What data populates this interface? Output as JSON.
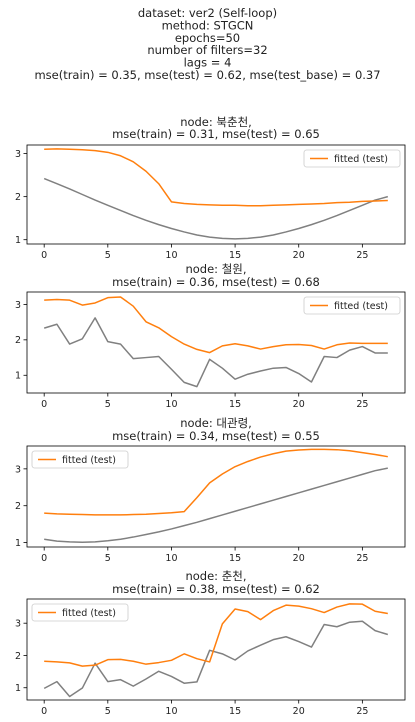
{
  "figure": {
    "suptitle_lines": [
      "dataset: ver2 (Self-loop)",
      "method: STGCN",
      "epochs=50",
      "number of filters=32",
      "lags = 4",
      "mse(train) = 0.35, mse(test) = 0.62, mse(test_base) = 0.37"
    ]
  },
  "chart_data": [
    {
      "type": "line",
      "title_lines": [
        "node: 북춘천,",
        "mse(train) = 0.31, mse(test) = 0.65"
      ],
      "x": [
        0,
        1,
        2,
        3,
        4,
        5,
        6,
        7,
        8,
        9,
        10,
        11,
        12,
        13,
        14,
        15,
        16,
        17,
        18,
        19,
        20,
        21,
        22,
        23,
        24,
        25,
        26,
        27
      ],
      "xticks": [
        0,
        5,
        10,
        15,
        20,
        25
      ],
      "yticks": [
        1,
        2,
        3
      ],
      "xlim": [
        -1.35,
        28.35
      ],
      "ylim": [
        0.9,
        3.2
      ],
      "legend_loc": "upper right",
      "series": [
        {
          "values": [
            2.42,
            2.3,
            2.18,
            2.05,
            1.92,
            1.8,
            1.68,
            1.56,
            1.45,
            1.35,
            1.26,
            1.18,
            1.11,
            1.06,
            1.03,
            1.02,
            1.03,
            1.06,
            1.11,
            1.18,
            1.26,
            1.35,
            1.45,
            1.56,
            1.68,
            1.8,
            1.92,
            2.0
          ],
          "color": "#808080"
        },
        {
          "name": "fitted (test)",
          "values": [
            3.1,
            3.11,
            3.1,
            3.09,
            3.07,
            3.03,
            2.95,
            2.81,
            2.59,
            2.3,
            1.88,
            1.84,
            1.82,
            1.81,
            1.8,
            1.8,
            1.79,
            1.79,
            1.8,
            1.81,
            1.82,
            1.83,
            1.84,
            1.86,
            1.87,
            1.89,
            1.9,
            1.91
          ],
          "color": "#ff7f0e"
        }
      ]
    },
    {
      "type": "line",
      "title_lines": [
        "node: 철원,",
        "mse(train) = 0.36, mse(test) = 0.68"
      ],
      "x": [
        0,
        1,
        2,
        3,
        4,
        5,
        6,
        7,
        8,
        9,
        10,
        11,
        12,
        13,
        14,
        15,
        16,
        17,
        18,
        19,
        20,
        21,
        22,
        23,
        24,
        25,
        26,
        27
      ],
      "xticks": [
        0,
        5,
        10,
        15,
        20,
        25
      ],
      "yticks": [
        1,
        2,
        3
      ],
      "xlim": [
        -1.35,
        28.35
      ],
      "ylim": [
        0.5,
        3.35
      ],
      "legend_loc": "upper right",
      "series": [
        {
          "values": [
            2.33,
            2.44,
            1.88,
            2.03,
            2.62,
            1.95,
            1.88,
            1.47,
            1.5,
            1.53,
            1.17,
            0.8,
            0.68,
            1.45,
            1.2,
            0.89,
            1.03,
            1.12,
            1.2,
            1.22,
            1.05,
            0.81,
            1.53,
            1.5,
            1.71,
            1.81,
            1.63,
            1.63
          ],
          "color": "#808080"
        },
        {
          "name": "fitted (test)",
          "values": [
            3.12,
            3.14,
            3.12,
            2.98,
            3.04,
            3.19,
            3.21,
            2.95,
            2.51,
            2.34,
            2.09,
            1.88,
            1.73,
            1.64,
            1.83,
            1.89,
            1.83,
            1.74,
            1.81,
            1.86,
            1.87,
            1.84,
            1.74,
            1.86,
            1.91,
            1.9,
            1.9,
            1.9
          ],
          "color": "#ff7f0e"
        }
      ]
    },
    {
      "type": "line",
      "title_lines": [
        "node: 대관령,",
        "mse(train) = 0.34, mse(test) = 0.55"
      ],
      "x": [
        0,
        1,
        2,
        3,
        4,
        5,
        6,
        7,
        8,
        9,
        10,
        11,
        12,
        13,
        14,
        15,
        16,
        17,
        18,
        19,
        20,
        21,
        22,
        23,
        24,
        25,
        26,
        27
      ],
      "xticks": [
        0,
        5,
        10,
        15,
        20,
        25
      ],
      "yticks": [
        1,
        2,
        3
      ],
      "xlim": [
        -1.35,
        28.35
      ],
      "ylim": [
        0.88,
        3.62
      ],
      "legend_loc": "upper left",
      "series": [
        {
          "values": [
            1.09,
            1.04,
            1.02,
            1.01,
            1.02,
            1.05,
            1.09,
            1.15,
            1.22,
            1.29,
            1.37,
            1.46,
            1.55,
            1.65,
            1.75,
            1.85,
            1.95,
            2.05,
            2.15,
            2.25,
            2.35,
            2.45,
            2.55,
            2.65,
            2.75,
            2.85,
            2.95,
            3.02
          ],
          "color": "#808080"
        },
        {
          "name": "fitted (test)",
          "values": [
            1.8,
            1.78,
            1.77,
            1.76,
            1.75,
            1.75,
            1.75,
            1.76,
            1.77,
            1.79,
            1.81,
            1.84,
            2.22,
            2.62,
            2.86,
            3.06,
            3.2,
            3.32,
            3.41,
            3.48,
            3.51,
            3.53,
            3.53,
            3.52,
            3.49,
            3.44,
            3.39,
            3.33
          ],
          "color": "#ff7f0e"
        }
      ]
    },
    {
      "type": "line",
      "title_lines": [
        "node: 춘천,",
        "mse(train) = 0.38, mse(test) = 0.62"
      ],
      "x": [
        0,
        1,
        2,
        3,
        4,
        5,
        6,
        7,
        8,
        9,
        10,
        11,
        12,
        13,
        14,
        15,
        16,
        17,
        18,
        19,
        20,
        21,
        22,
        23,
        24,
        25,
        26,
        27
      ],
      "xticks": [
        0,
        5,
        10,
        15,
        20,
        25
      ],
      "yticks": [
        1,
        2,
        3
      ],
      "xlim": [
        -1.35,
        28.35
      ],
      "ylim": [
        0.62,
        3.75
      ],
      "legend_loc": "upper left",
      "series": [
        {
          "values": [
            0.98,
            1.19,
            0.73,
            0.99,
            1.76,
            1.19,
            1.25,
            1.05,
            1.27,
            1.51,
            1.35,
            1.14,
            1.18,
            2.16,
            2.05,
            1.86,
            2.14,
            2.32,
            2.49,
            2.58,
            2.43,
            2.26,
            2.96,
            2.89,
            3.03,
            3.06,
            2.77,
            2.65
          ],
          "color": "#808080"
        },
        {
          "name": "fitted (test)",
          "values": [
            1.82,
            1.8,
            1.77,
            1.67,
            1.7,
            1.87,
            1.88,
            1.82,
            1.73,
            1.78,
            1.85,
            2.05,
            1.9,
            1.8,
            2.98,
            3.44,
            3.36,
            3.11,
            3.39,
            3.56,
            3.53,
            3.45,
            3.33,
            3.5,
            3.6,
            3.59,
            3.37,
            3.3
          ],
          "color": "#ff7f0e"
        }
      ]
    }
  ]
}
